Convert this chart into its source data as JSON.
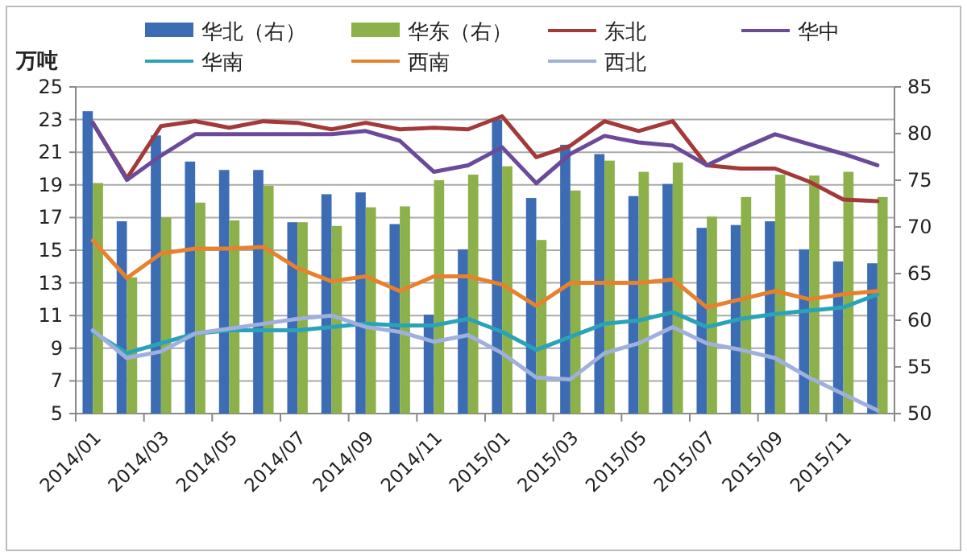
{
  "chart_data": {
    "type": "bar",
    "ylabel": "万吨",
    "categories": [
      "2014/01",
      null,
      "2014/03",
      null,
      "2014/05",
      null,
      "2014/07",
      null,
      "2014/09",
      null,
      "2014/11",
      null,
      "2015/01",
      null,
      "2015/03",
      null,
      "2015/05",
      null,
      "2015/07",
      null,
      "2015/09",
      null,
      "2015/11",
      null
    ],
    "series": [
      {
        "name": "华北（右）",
        "axis": "y2",
        "color": "#3b6cb4",
        "values": [
          82.4,
          70.6,
          79.8,
          77.0,
          76.1,
          76.1,
          70.5,
          73.5,
          73.7,
          70.3,
          60.6,
          67.6,
          81.5,
          73.1,
          78.8,
          77.8,
          73.3,
          74.6,
          69.9,
          70.2,
          70.6,
          67.6,
          66.3,
          66.1
        ]
      },
      {
        "name": "华东（右）",
        "axis": "y2",
        "color": "#8cb04a",
        "values": [
          74.7,
          64.6,
          71.0,
          72.6,
          70.7,
          74.4,
          70.5,
          70.1,
          72.1,
          72.2,
          75.0,
          75.6,
          76.5,
          68.6,
          73.9,
          77.1,
          75.9,
          76.9,
          71.1,
          73.2,
          75.6,
          75.5,
          75.9,
          73.2
        ]
      },
      {
        "name": "东北",
        "type": "line",
        "color": "#a33a3a",
        "values": [
          22.8,
          19.4,
          22.6,
          22.9,
          22.5,
          22.9,
          22.8,
          22.4,
          22.8,
          22.4,
          22.5,
          22.4,
          23.2,
          20.7,
          21.4,
          22.9,
          22.3,
          22.9,
          20.2,
          20.0,
          20.0,
          19.2,
          18.1,
          18.0
        ]
      },
      {
        "name": "华中",
        "type": "line",
        "color": "#6b4a9a",
        "values": [
          22.8,
          19.3,
          20.8,
          22.1,
          22.1,
          22.1,
          22.1,
          22.1,
          22.3,
          21.7,
          19.8,
          20.2,
          21.3,
          19.1,
          20.9,
          22.0,
          21.6,
          21.4,
          20.2,
          21.2,
          22.1,
          21.5,
          20.9,
          20.2
        ]
      },
      {
        "name": "华南",
        "type": "line",
        "color": "#2aa3b8",
        "values": [
          10.0,
          8.7,
          9.3,
          9.9,
          10.1,
          10.1,
          10.1,
          10.3,
          10.5,
          10.4,
          10.4,
          10.8,
          10.0,
          8.9,
          9.7,
          10.5,
          10.7,
          11.2,
          10.3,
          10.8,
          11.1,
          11.3,
          11.5,
          12.3
        ]
      },
      {
        "name": "西南",
        "type": "line",
        "color": "#e8812e",
        "values": [
          15.6,
          13.3,
          14.8,
          15.1,
          15.1,
          15.2,
          13.9,
          13.1,
          13.4,
          12.5,
          13.4,
          13.4,
          12.9,
          11.6,
          13.0,
          13.0,
          13.0,
          13.2,
          11.5,
          12.0,
          12.5,
          12.0,
          12.3,
          12.5
        ]
      },
      {
        "name": "西北",
        "type": "line",
        "color": "#9fb0dd",
        "values": [
          10.1,
          8.4,
          8.8,
          9.9,
          10.2,
          10.5,
          10.8,
          11.0,
          10.3,
          10.0,
          9.4,
          9.8,
          8.7,
          7.2,
          7.1,
          8.7,
          9.3,
          10.3,
          9.3,
          8.9,
          8.4,
          7.2,
          6.2,
          5.2
        ]
      }
    ],
    "ylim": [
      5,
      25
    ],
    "yticks": [
      5,
      7,
      9,
      11,
      13,
      15,
      17,
      19,
      21,
      23,
      25
    ],
    "y2lim": [
      50,
      85
    ],
    "y2ticks": [
      50,
      55,
      60,
      65,
      70,
      75,
      80,
      85
    ],
    "grid": "y",
    "legend": "top",
    "marker": "none",
    "line_style": "solid"
  }
}
